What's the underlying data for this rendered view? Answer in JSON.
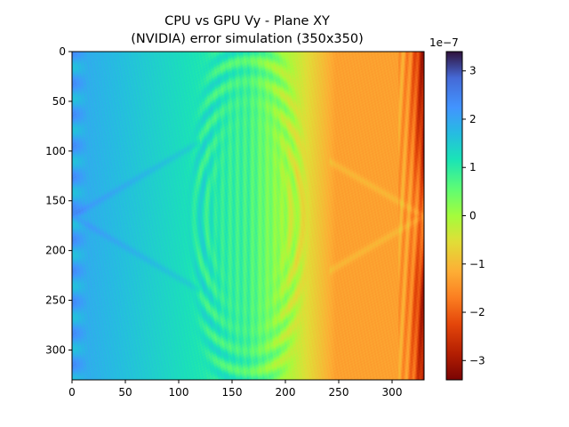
{
  "chart_data": {
    "type": "heatmap",
    "title_lines": [
      "CPU vs GPU Vy - Plane XY",
      "(NVIDIA) error simulation (350x350)"
    ],
    "colormap": "turbo (reversed)",
    "x_ticks": [
      "0",
      "50",
      "100",
      "150",
      "200",
      "250",
      "300"
    ],
    "y_ticks": [
      "0",
      "50",
      "100",
      "150",
      "200",
      "250",
      "300"
    ],
    "x_range": [
      0,
      330
    ],
    "y_range": [
      0,
      330
    ],
    "y_inverted": true,
    "colorbar": {
      "offset_label": "1e−7",
      "ticks": [
        "3",
        "2",
        "1",
        "0",
        "−1",
        "−2",
        "−3"
      ],
      "tick_values": [
        3,
        2,
        1,
        0,
        -1,
        -2,
        -3
      ],
      "range": [
        -3.4,
        3.4
      ]
    },
    "field_description": {
      "left_edge_value": 2.0,
      "center_value": 0.8,
      "right_edge_value": -1.3,
      "far_right_value": -3.2,
      "ring_center_x": 165,
      "ring_center_y": 165
    }
  }
}
